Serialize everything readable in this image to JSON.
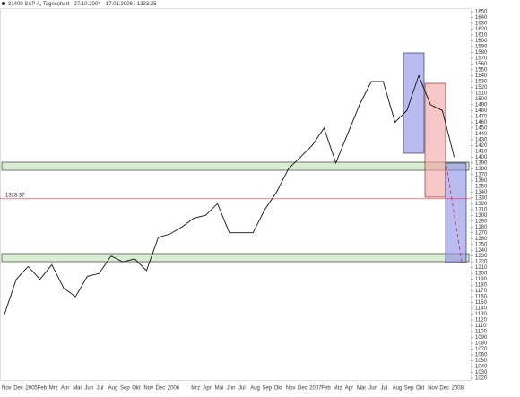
{
  "chart_data": {
    "type": "line",
    "title": "31400  S&P A, Tageschart - 27.10.2004 - 17.01.2008 : 1333.25",
    "categories": [
      "Nov",
      "Dec",
      "2005",
      "Feb",
      "Mrz",
      "Apr",
      "Mai",
      "Jun",
      "Jul",
      "Aug",
      "Sep",
      "Okt",
      "Nov",
      "Dec",
      "2006",
      null,
      "Mrz",
      "Apr",
      "Mai",
      "Jun",
      "Jul",
      "Aug",
      "Sep",
      "Okt",
      "Nov",
      "Dec",
      "2007",
      "Feb",
      "Mrz",
      "Apr",
      "Mai",
      "Jun",
      "Jul",
      "Aug",
      "Sep",
      "Okt",
      "Nov",
      "Dec",
      "2008"
    ],
    "series": [
      {
        "name": "S&P A",
        "color": "#111111",
        "values": [
          1130,
          1190,
          1212,
          1190,
          1215,
          1175,
          1160,
          1195,
          1200,
          1230,
          1220,
          1225,
          1205,
          1262,
          1268,
          1280,
          1295,
          1300,
          1320,
          1270,
          1270,
          1270,
          1310,
          1340,
          1380,
          1400,
          1420,
          1450,
          1390,
          1440,
          1490,
          1530,
          1530,
          1460,
          1480,
          1540,
          1490,
          1480,
          1400
        ]
      }
    ],
    "hline": 1328.37,
    "ylim": [
      1020,
      1650
    ],
    "yticks": [
      1020,
      1030,
      1040,
      1050,
      1060,
      1070,
      1080,
      1090,
      1100,
      1110,
      1120,
      1130,
      1140,
      1150,
      1160,
      1170,
      1180,
      1190,
      1200,
      1210,
      1220,
      1230,
      1240,
      1250,
      1260,
      1270,
      1280,
      1290,
      1300,
      1310,
      1320,
      1330,
      1340,
      1350,
      1360,
      1370,
      1380,
      1390,
      1400,
      1410,
      1420,
      1430,
      1440,
      1450,
      1460,
      1470,
      1480,
      1490,
      1500,
      1510,
      1520,
      1530,
      1540,
      1550,
      1560,
      1570,
      1580,
      1590,
      1600,
      1610,
      1620,
      1630,
      1640,
      1650
    ],
    "grid": false
  }
}
